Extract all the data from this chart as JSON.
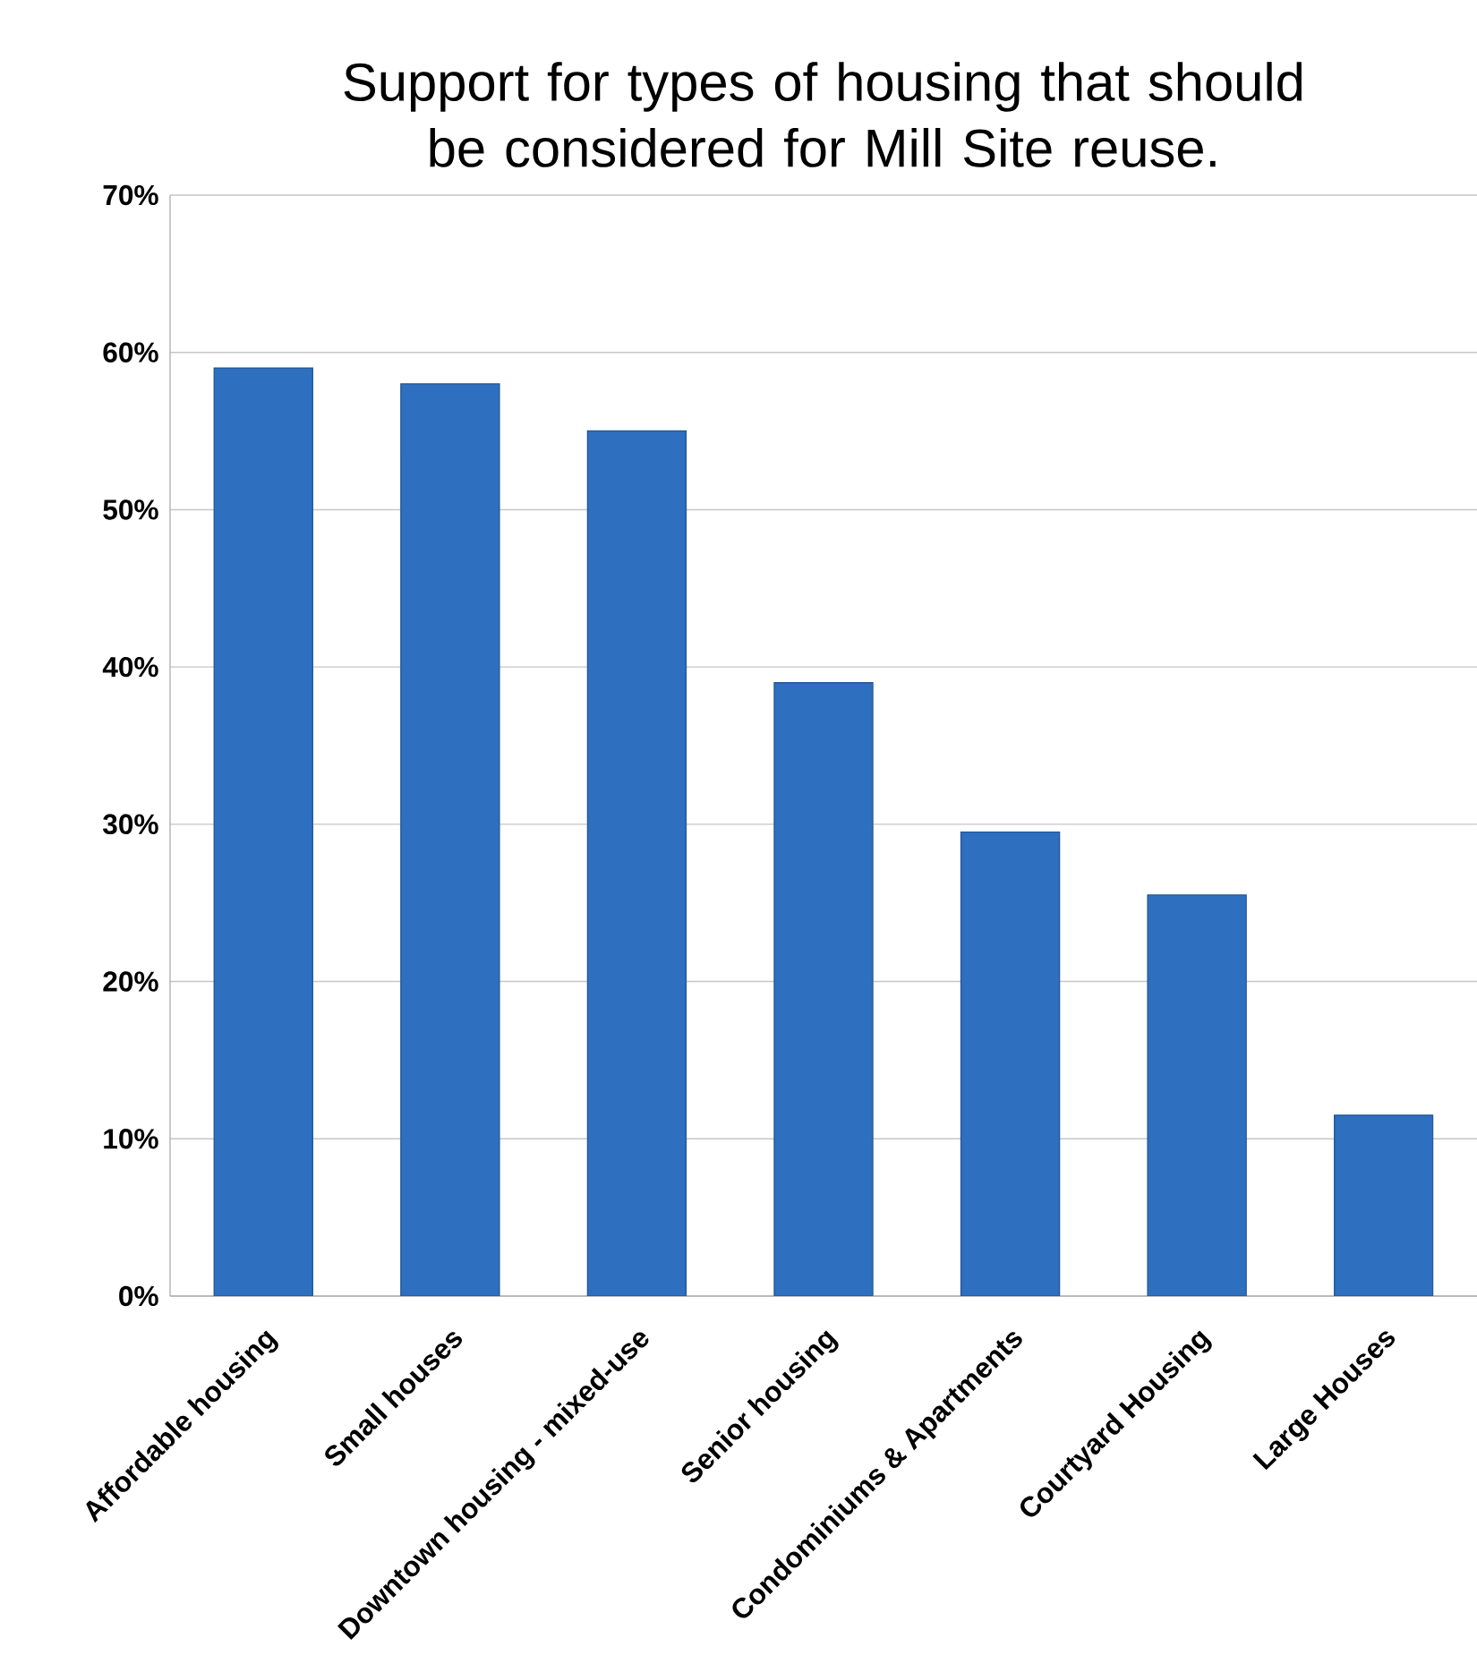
{
  "chart_data": {
    "type": "bar",
    "title": "Support for types of housing that should be considered for Mill Site reuse.",
    "categories": [
      "Affordable housing",
      "Small houses",
      "Downtown housing - mixed-use",
      "Senior housing",
      "Condominiums & Apartments",
      "Courtyard Housing",
      "Large Houses"
    ],
    "values": [
      59,
      58,
      55,
      39,
      29.5,
      25.5,
      11.5
    ],
    "color": "#2e6fc0",
    "ylim": [
      0,
      70
    ],
    "yticks": [
      {
        "value": 0,
        "label": "0%"
      },
      {
        "value": 10,
        "label": "10%"
      },
      {
        "value": 20,
        "label": "20%"
      },
      {
        "value": 30,
        "label": "30%"
      },
      {
        "value": 40,
        "label": "40%"
      },
      {
        "value": 50,
        "label": "50%"
      },
      {
        "value": 60,
        "label": "60%"
      },
      {
        "value": 70,
        "label": "70%"
      }
    ],
    "grid": "y"
  }
}
